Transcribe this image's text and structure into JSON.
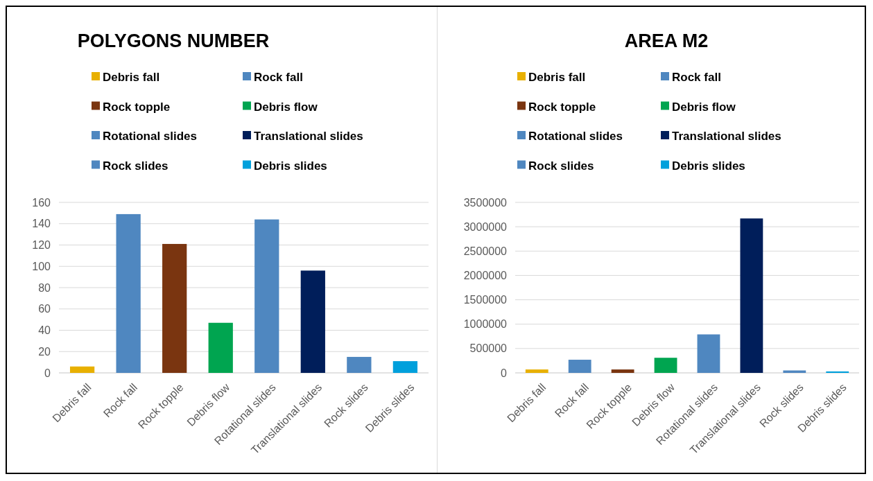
{
  "chart_data": [
    {
      "type": "bar",
      "title": "POLYGONS NUMBER",
      "categories": [
        "Debris fall",
        "Rock fall",
        "Rock topple",
        "Debris flow",
        "Rotational slides",
        "Translational slides",
        "Rock slides",
        "Debris slides"
      ],
      "series": [
        {
          "name": "Debris fall",
          "color": "#e8b000",
          "values": [
            6,
            null,
            null,
            null,
            null,
            null,
            null,
            null
          ]
        },
        {
          "name": "Rock fall",
          "color": "#4f87c0",
          "values": [
            null,
            149,
            null,
            null,
            null,
            null,
            null,
            null
          ]
        },
        {
          "name": "Rock topple",
          "color": "#7a3510",
          "values": [
            null,
            null,
            121,
            null,
            null,
            null,
            null,
            null
          ]
        },
        {
          "name": "Debris flow",
          "color": "#00a550",
          "values": [
            null,
            null,
            null,
            47,
            null,
            null,
            null,
            null
          ]
        },
        {
          "name": "Rotational slides",
          "color": "#4f87c0",
          "values": [
            null,
            null,
            null,
            null,
            144,
            null,
            null,
            null
          ]
        },
        {
          "name": "Translational slides",
          "color": "#001e5a",
          "values": [
            null,
            null,
            null,
            null,
            null,
            96,
            null,
            null
          ]
        },
        {
          "name": "Rock slides",
          "color": "#4f87c0",
          "values": [
            null,
            null,
            null,
            null,
            null,
            null,
            15,
            null
          ]
        },
        {
          "name": "Debris slides",
          "color": "#00a0dc",
          "values": [
            null,
            null,
            null,
            null,
            null,
            null,
            null,
            11
          ]
        }
      ],
      "ylim": [
        0,
        160
      ],
      "yticks": [
        0,
        20,
        40,
        60,
        80,
        100,
        120,
        140,
        160
      ],
      "grid": "y",
      "legend": "top"
    },
    {
      "type": "bar",
      "title": "AREA M2",
      "categories": [
        "Debris fall",
        "Rock fall",
        "Rock topple",
        "Debris flow",
        "Rotational slides",
        "Translational slides",
        "Rock slides",
        "Debris slides"
      ],
      "series": [
        {
          "name": "Debris fall",
          "color": "#e8b000",
          "values": [
            70000,
            null,
            null,
            null,
            null,
            null,
            null,
            null
          ]
        },
        {
          "name": "Rock fall",
          "color": "#4f87c0",
          "values": [
            null,
            270000,
            null,
            null,
            null,
            null,
            null,
            null
          ]
        },
        {
          "name": "Rock topple",
          "color": "#7a3510",
          "values": [
            null,
            null,
            70000,
            null,
            null,
            null,
            null,
            null
          ]
        },
        {
          "name": "Debris flow",
          "color": "#00a550",
          "values": [
            null,
            null,
            null,
            310000,
            null,
            null,
            null,
            null
          ]
        },
        {
          "name": "Rotational slides",
          "color": "#4f87c0",
          "values": [
            null,
            null,
            null,
            null,
            790000,
            null,
            null,
            null
          ]
        },
        {
          "name": "Translational slides",
          "color": "#001e5a",
          "values": [
            null,
            null,
            null,
            null,
            null,
            3170000,
            null,
            null
          ]
        },
        {
          "name": "Rock slides",
          "color": "#4f87c0",
          "values": [
            null,
            null,
            null,
            null,
            null,
            null,
            50000,
            null
          ]
        },
        {
          "name": "Debris slides",
          "color": "#00a0dc",
          "values": [
            null,
            null,
            null,
            null,
            null,
            null,
            null,
            30000
          ]
        }
      ],
      "ylim": [
        0,
        3500000
      ],
      "yticks": [
        0,
        500000,
        1000000,
        1500000,
        2000000,
        2500000,
        3000000,
        3500000
      ],
      "grid": "y",
      "legend": "top"
    }
  ]
}
